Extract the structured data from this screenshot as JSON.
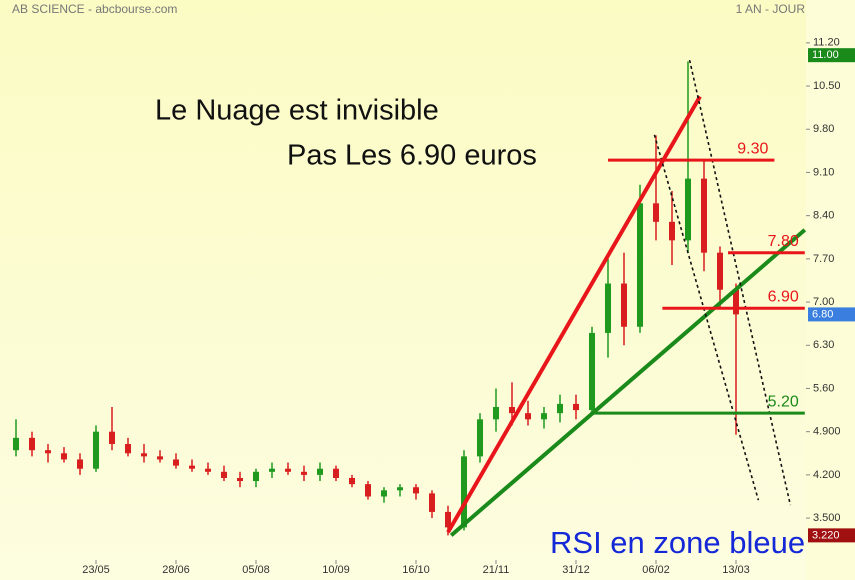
{
  "chart_data": {
    "type": "candlestick",
    "title": "AB SCIENCE - abcbourse.com",
    "subtitle": "1 AN - JOUR",
    "annotations": [
      "Le Nuage est invisible",
      "Pas Les 6.90 euros",
      "RSI en zone bleue"
    ],
    "categories": [
      null,
      null,
      null,
      null,
      null,
      "23/05",
      null,
      null,
      null,
      null,
      "28/06",
      null,
      null,
      null,
      null,
      "05/08",
      null,
      null,
      null,
      null,
      "10/09",
      null,
      null,
      null,
      null,
      "16/10",
      null,
      null,
      null,
      null,
      "21/11",
      null,
      null,
      null,
      null,
      "31/12",
      null,
      null,
      null,
      null,
      "06/02",
      null,
      null,
      null,
      null,
      "13/03"
    ],
    "open": [
      4.6,
      4.8,
      4.6,
      4.55,
      4.45,
      4.3,
      4.9,
      4.7,
      4.55,
      4.5,
      4.45,
      4.35,
      4.3,
      4.25,
      4.15,
      4.1,
      4.25,
      4.3,
      4.25,
      4.2,
      4.3,
      4.15,
      4.05,
      3.85,
      3.95,
      4.0,
      3.9,
      3.6,
      3.35,
      4.5,
      5.1,
      5.3,
      5.2,
      5.1,
      5.2,
      5.35,
      5.25,
      6.5,
      7.3,
      6.6,
      8.6,
      8.3,
      8.0,
      9.0,
      7.8,
      7.2
    ],
    "high": [
      5.1,
      4.9,
      4.7,
      4.65,
      4.55,
      5.0,
      5.3,
      4.8,
      4.7,
      4.6,
      4.55,
      4.45,
      4.4,
      4.35,
      4.25,
      4.3,
      4.4,
      4.4,
      4.35,
      4.4,
      4.35,
      4.2,
      4.1,
      4.0,
      4.05,
      4.05,
      3.95,
      3.7,
      4.6,
      5.2,
      5.6,
      5.7,
      5.4,
      5.3,
      5.5,
      5.5,
      6.6,
      7.7,
      7.8,
      8.9,
      9.7,
      8.8,
      10.9,
      9.3,
      7.9,
      7.3
    ],
    "low": [
      4.5,
      4.5,
      4.4,
      4.4,
      4.2,
      4.25,
      4.6,
      4.5,
      4.4,
      4.4,
      4.3,
      4.25,
      4.2,
      4.1,
      4.0,
      4.0,
      4.15,
      4.2,
      4.1,
      4.1,
      4.1,
      4.0,
      3.8,
      3.75,
      3.85,
      3.8,
      3.5,
      3.22,
      3.3,
      4.4,
      4.9,
      5.0,
      5.0,
      4.95,
      5.05,
      5.1,
      5.2,
      6.1,
      6.3,
      6.5,
      8.0,
      7.6,
      7.8,
      7.5,
      6.9,
      4.85
    ],
    "close": [
      4.8,
      4.6,
      4.55,
      4.45,
      4.3,
      4.9,
      4.7,
      4.55,
      4.5,
      4.45,
      4.35,
      4.3,
      4.25,
      4.15,
      4.1,
      4.25,
      4.3,
      4.25,
      4.2,
      4.3,
      4.15,
      4.05,
      3.85,
      3.95,
      4.0,
      3.9,
      3.6,
      3.35,
      4.5,
      5.1,
      5.3,
      5.2,
      5.1,
      5.2,
      5.35,
      5.25,
      6.5,
      7.3,
      6.6,
      8.6,
      8.3,
      8.0,
      9.0,
      7.8,
      7.2,
      6.8
    ],
    "up_color": "#1f9a1f",
    "down_color": "#d81e1e",
    "ylim": [
      2.74,
      11.57
    ],
    "yticks": [
      {
        "value": 3.5,
        "label": "3.500"
      },
      {
        "value": 4.2,
        "label": "4.200"
      },
      {
        "value": 4.9,
        "label": "4.900"
      },
      {
        "value": 5.6,
        "label": "5.60"
      },
      {
        "value": 6.3,
        "label": "6.30"
      },
      {
        "value": 7.0,
        "label": "7.00"
      },
      {
        "value": 7.7,
        "label": "7.70"
      },
      {
        "value": 8.4,
        "label": "8.40"
      },
      {
        "value": 9.1,
        "label": "9.10"
      },
      {
        "value": 9.8,
        "label": "9.80"
      },
      {
        "value": 10.5,
        "label": "10.50"
      },
      {
        "value": 11.2,
        "label": "11.20"
      }
    ],
    "price_tags": [
      {
        "value": 11.0,
        "label": "11.00",
        "color": "#1a8a1a"
      },
      {
        "value": 6.8,
        "label": "6.80",
        "color": "#3a7fe0"
      },
      {
        "value": 3.22,
        "label": "3.220",
        "color": "#a01010"
      }
    ],
    "levels": [
      {
        "value": 9.3,
        "label": "9.30",
        "color": "#e8161b",
        "x": [
          37,
          47.4
        ]
      },
      {
        "value": 7.8,
        "label": "7.80",
        "color": "#e8161b",
        "x": [
          44.5,
          49.3
        ]
      },
      {
        "value": 6.9,
        "label": "6.90",
        "color": "#e8161b",
        "x": [
          40.4,
          49.3
        ]
      },
      {
        "value": 5.2,
        "label": "5.20",
        "color": "#1a8a1a",
        "x": [
          35.9,
          49.3
        ]
      }
    ],
    "trendlines": [
      {
        "color": "#e8161b",
        "dash": false,
        "x": [
          27,
          42.75
        ],
        "y": [
          3.27,
          10.33
        ]
      },
      {
        "color": "#1a8a1a",
        "dash": false,
        "x": [
          27.2,
          49.3
        ],
        "y": [
          3.22,
          8.17
        ]
      },
      {
        "color": "#111111",
        "dash": true,
        "x": [
          39.9,
          46.4
        ],
        "y": [
          9.71,
          3.79
        ]
      },
      {
        "color": "#111111",
        "dash": true,
        "x": [
          42.1,
          48.4
        ],
        "y": [
          10.92,
          3.71
        ]
      }
    ]
  }
}
